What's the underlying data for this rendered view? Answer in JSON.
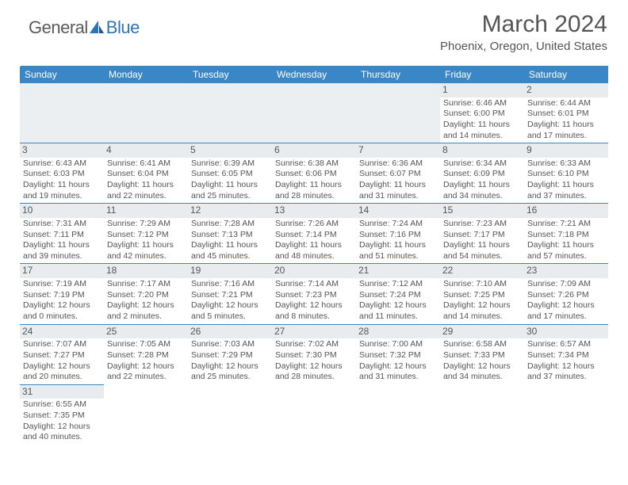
{
  "logo": {
    "part1": "General",
    "part2": "Blue"
  },
  "title": "March 2024",
  "location": "Phoenix, Oregon, United States",
  "colors": {
    "header_bg": "#3a87c7",
    "header_text": "#ffffff",
    "border": "#3a87c7",
    "text": "#555555",
    "logo_gray": "#5a5a5a",
    "logo_blue": "#2e75b6",
    "daynum_bg": "#e9ecef"
  },
  "day_headers": [
    "Sunday",
    "Monday",
    "Tuesday",
    "Wednesday",
    "Thursday",
    "Friday",
    "Saturday"
  ],
  "weeks": [
    [
      null,
      null,
      null,
      null,
      null,
      {
        "n": "1",
        "sr": "Sunrise: 6:46 AM",
        "ss": "Sunset: 6:00 PM",
        "d1": "Daylight: 11 hours",
        "d2": "and 14 minutes."
      },
      {
        "n": "2",
        "sr": "Sunrise: 6:44 AM",
        "ss": "Sunset: 6:01 PM",
        "d1": "Daylight: 11 hours",
        "d2": "and 17 minutes."
      }
    ],
    [
      {
        "n": "3",
        "sr": "Sunrise: 6:43 AM",
        "ss": "Sunset: 6:03 PM",
        "d1": "Daylight: 11 hours",
        "d2": "and 19 minutes."
      },
      {
        "n": "4",
        "sr": "Sunrise: 6:41 AM",
        "ss": "Sunset: 6:04 PM",
        "d1": "Daylight: 11 hours",
        "d2": "and 22 minutes."
      },
      {
        "n": "5",
        "sr": "Sunrise: 6:39 AM",
        "ss": "Sunset: 6:05 PM",
        "d1": "Daylight: 11 hours",
        "d2": "and 25 minutes."
      },
      {
        "n": "6",
        "sr": "Sunrise: 6:38 AM",
        "ss": "Sunset: 6:06 PM",
        "d1": "Daylight: 11 hours",
        "d2": "and 28 minutes."
      },
      {
        "n": "7",
        "sr": "Sunrise: 6:36 AM",
        "ss": "Sunset: 6:07 PM",
        "d1": "Daylight: 11 hours",
        "d2": "and 31 minutes."
      },
      {
        "n": "8",
        "sr": "Sunrise: 6:34 AM",
        "ss": "Sunset: 6:09 PM",
        "d1": "Daylight: 11 hours",
        "d2": "and 34 minutes."
      },
      {
        "n": "9",
        "sr": "Sunrise: 6:33 AM",
        "ss": "Sunset: 6:10 PM",
        "d1": "Daylight: 11 hours",
        "d2": "and 37 minutes."
      }
    ],
    [
      {
        "n": "10",
        "sr": "Sunrise: 7:31 AM",
        "ss": "Sunset: 7:11 PM",
        "d1": "Daylight: 11 hours",
        "d2": "and 39 minutes."
      },
      {
        "n": "11",
        "sr": "Sunrise: 7:29 AM",
        "ss": "Sunset: 7:12 PM",
        "d1": "Daylight: 11 hours",
        "d2": "and 42 minutes."
      },
      {
        "n": "12",
        "sr": "Sunrise: 7:28 AM",
        "ss": "Sunset: 7:13 PM",
        "d1": "Daylight: 11 hours",
        "d2": "and 45 minutes."
      },
      {
        "n": "13",
        "sr": "Sunrise: 7:26 AM",
        "ss": "Sunset: 7:14 PM",
        "d1": "Daylight: 11 hours",
        "d2": "and 48 minutes."
      },
      {
        "n": "14",
        "sr": "Sunrise: 7:24 AM",
        "ss": "Sunset: 7:16 PM",
        "d1": "Daylight: 11 hours",
        "d2": "and 51 minutes."
      },
      {
        "n": "15",
        "sr": "Sunrise: 7:23 AM",
        "ss": "Sunset: 7:17 PM",
        "d1": "Daylight: 11 hours",
        "d2": "and 54 minutes."
      },
      {
        "n": "16",
        "sr": "Sunrise: 7:21 AM",
        "ss": "Sunset: 7:18 PM",
        "d1": "Daylight: 11 hours",
        "d2": "and 57 minutes."
      }
    ],
    [
      {
        "n": "17",
        "sr": "Sunrise: 7:19 AM",
        "ss": "Sunset: 7:19 PM",
        "d1": "Daylight: 12 hours",
        "d2": "and 0 minutes."
      },
      {
        "n": "18",
        "sr": "Sunrise: 7:17 AM",
        "ss": "Sunset: 7:20 PM",
        "d1": "Daylight: 12 hours",
        "d2": "and 2 minutes."
      },
      {
        "n": "19",
        "sr": "Sunrise: 7:16 AM",
        "ss": "Sunset: 7:21 PM",
        "d1": "Daylight: 12 hours",
        "d2": "and 5 minutes."
      },
      {
        "n": "20",
        "sr": "Sunrise: 7:14 AM",
        "ss": "Sunset: 7:23 PM",
        "d1": "Daylight: 12 hours",
        "d2": "and 8 minutes."
      },
      {
        "n": "21",
        "sr": "Sunrise: 7:12 AM",
        "ss": "Sunset: 7:24 PM",
        "d1": "Daylight: 12 hours",
        "d2": "and 11 minutes."
      },
      {
        "n": "22",
        "sr": "Sunrise: 7:10 AM",
        "ss": "Sunset: 7:25 PM",
        "d1": "Daylight: 12 hours",
        "d2": "and 14 minutes."
      },
      {
        "n": "23",
        "sr": "Sunrise: 7:09 AM",
        "ss": "Sunset: 7:26 PM",
        "d1": "Daylight: 12 hours",
        "d2": "and 17 minutes."
      }
    ],
    [
      {
        "n": "24",
        "sr": "Sunrise: 7:07 AM",
        "ss": "Sunset: 7:27 PM",
        "d1": "Daylight: 12 hours",
        "d2": "and 20 minutes."
      },
      {
        "n": "25",
        "sr": "Sunrise: 7:05 AM",
        "ss": "Sunset: 7:28 PM",
        "d1": "Daylight: 12 hours",
        "d2": "and 22 minutes."
      },
      {
        "n": "26",
        "sr": "Sunrise: 7:03 AM",
        "ss": "Sunset: 7:29 PM",
        "d1": "Daylight: 12 hours",
        "d2": "and 25 minutes."
      },
      {
        "n": "27",
        "sr": "Sunrise: 7:02 AM",
        "ss": "Sunset: 7:30 PM",
        "d1": "Daylight: 12 hours",
        "d2": "and 28 minutes."
      },
      {
        "n": "28",
        "sr": "Sunrise: 7:00 AM",
        "ss": "Sunset: 7:32 PM",
        "d1": "Daylight: 12 hours",
        "d2": "and 31 minutes."
      },
      {
        "n": "29",
        "sr": "Sunrise: 6:58 AM",
        "ss": "Sunset: 7:33 PM",
        "d1": "Daylight: 12 hours",
        "d2": "and 34 minutes."
      },
      {
        "n": "30",
        "sr": "Sunrise: 6:57 AM",
        "ss": "Sunset: 7:34 PM",
        "d1": "Daylight: 12 hours",
        "d2": "and 37 minutes."
      }
    ],
    [
      {
        "n": "31",
        "sr": "Sunrise: 6:55 AM",
        "ss": "Sunset: 7:35 PM",
        "d1": "Daylight: 12 hours",
        "d2": "and 40 minutes."
      },
      null,
      null,
      null,
      null,
      null,
      null
    ]
  ]
}
